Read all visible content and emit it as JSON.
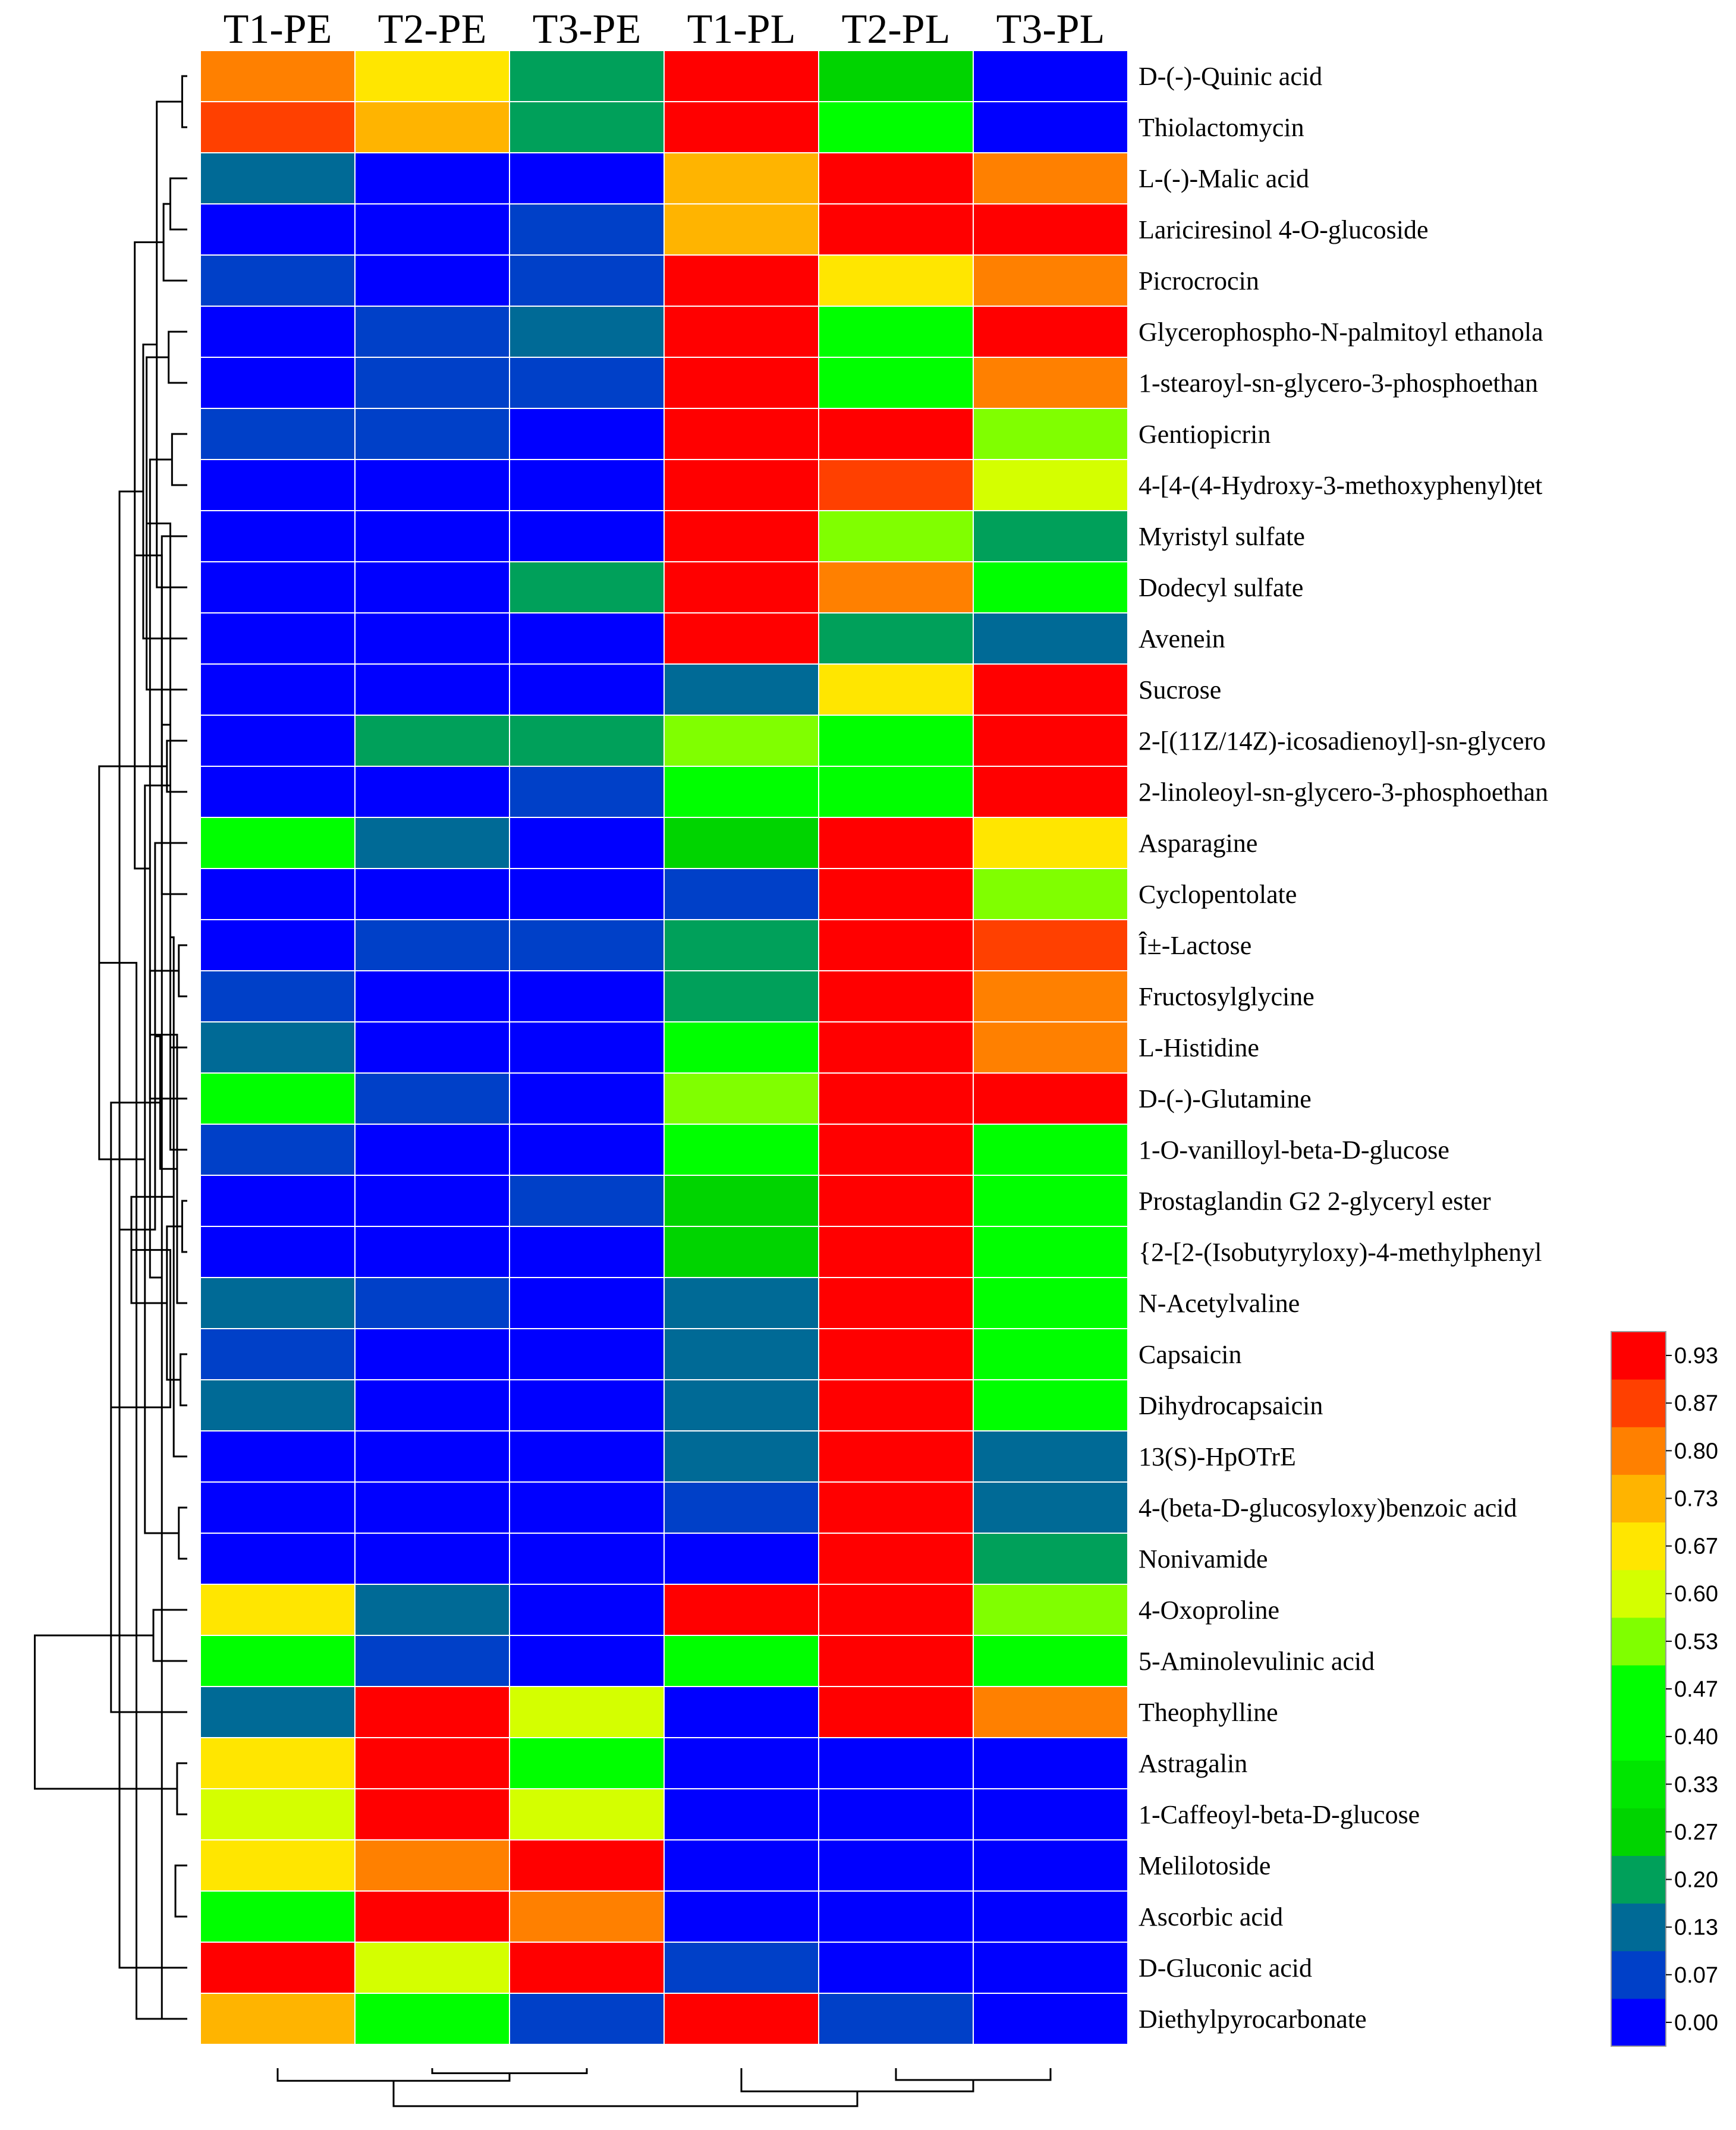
{
  "chart_data": {
    "type": "heatmap",
    "title": "",
    "columns": [
      "T1-PE",
      "T2-PE",
      "T3-PE",
      "T1-PL",
      "T2-PL",
      "T3-PL"
    ],
    "rows": [
      {
        "name": "D-(-)-Quinic acid",
        "values": [
          0.8,
          0.67,
          0.2,
          0.93,
          0.27,
          0.0
        ]
      },
      {
        "name": "Thiolactomycin",
        "values": [
          0.87,
          0.73,
          0.2,
          0.93,
          0.4,
          0.0
        ]
      },
      {
        "name": "L-(-)-Malic acid",
        "values": [
          0.13,
          0.0,
          0.0,
          0.73,
          0.93,
          0.8
        ]
      },
      {
        "name": "Lariciresinol 4-O-glucoside",
        "values": [
          0.0,
          0.0,
          0.07,
          0.73,
          0.93,
          0.93
        ]
      },
      {
        "name": "Picrocrocin",
        "values": [
          0.07,
          0.0,
          0.07,
          0.93,
          0.67,
          0.8
        ]
      },
      {
        "name": "Glycerophospho-N-palmitoyl ethanola",
        "values": [
          0.0,
          0.07,
          0.13,
          0.93,
          0.4,
          0.93
        ]
      },
      {
        "name": "1-stearoyl-sn-glycero-3-phosphoethan",
        "values": [
          0.0,
          0.07,
          0.07,
          0.93,
          0.4,
          0.8
        ]
      },
      {
        "name": "Gentiopicrin",
        "values": [
          0.07,
          0.07,
          0.0,
          0.93,
          0.93,
          0.53
        ]
      },
      {
        "name": "4-[4-(4-Hydroxy-3-methoxyphenyl)tet",
        "values": [
          0.0,
          0.0,
          0.0,
          0.93,
          0.87,
          0.6
        ]
      },
      {
        "name": "Myristyl sulfate",
        "values": [
          0.0,
          0.0,
          0.0,
          0.93,
          0.53,
          0.2
        ]
      },
      {
        "name": "Dodecyl sulfate",
        "values": [
          0.0,
          0.0,
          0.2,
          0.93,
          0.8,
          0.4
        ]
      },
      {
        "name": "Avenein",
        "values": [
          0.0,
          0.0,
          0.0,
          0.93,
          0.2,
          0.13
        ]
      },
      {
        "name": "Sucrose",
        "values": [
          0.0,
          0.0,
          0.0,
          0.13,
          0.67,
          0.93
        ]
      },
      {
        "name": "2-[(11Z/14Z)-icosadienoyl]-sn-glycero",
        "values": [
          0.0,
          0.2,
          0.2,
          0.53,
          0.4,
          0.93
        ]
      },
      {
        "name": "2-linoleoyl-sn-glycero-3-phosphoethan",
        "values": [
          0.0,
          0.0,
          0.07,
          0.4,
          0.4,
          0.93
        ]
      },
      {
        "name": "Asparagine",
        "values": [
          0.4,
          0.13,
          0.0,
          0.27,
          0.93,
          0.67
        ]
      },
      {
        "name": "Cyclopentolate",
        "values": [
          0.0,
          0.0,
          0.0,
          0.07,
          0.93,
          0.53
        ]
      },
      {
        "name": "Î±-Lactose",
        "values": [
          0.0,
          0.07,
          0.07,
          0.2,
          0.93,
          0.87
        ]
      },
      {
        "name": "Fructosylglycine",
        "values": [
          0.07,
          0.0,
          0.0,
          0.2,
          0.93,
          0.8
        ]
      },
      {
        "name": "L-Histidine",
        "values": [
          0.13,
          0.0,
          0.0,
          0.4,
          0.93,
          0.8
        ]
      },
      {
        "name": "D-(-)-Glutamine",
        "values": [
          0.4,
          0.07,
          0.0,
          0.53,
          0.93,
          0.93
        ]
      },
      {
        "name": "1-O-vanilloyl-beta-D-glucose",
        "values": [
          0.07,
          0.0,
          0.0,
          0.4,
          0.93,
          0.4
        ]
      },
      {
        "name": "Prostaglandin G2 2-glyceryl ester",
        "values": [
          0.0,
          0.0,
          0.07,
          0.27,
          0.93,
          0.4
        ]
      },
      {
        "name": "{2-[2-(Isobutyryloxy)-4-methylphenyl",
        "values": [
          0.0,
          0.0,
          0.0,
          0.27,
          0.93,
          0.4
        ]
      },
      {
        "name": "N-Acetylvaline",
        "values": [
          0.13,
          0.07,
          0.0,
          0.13,
          0.93,
          0.4
        ]
      },
      {
        "name": "Capsaicin",
        "values": [
          0.07,
          0.0,
          0.0,
          0.13,
          0.93,
          0.4
        ]
      },
      {
        "name": "Dihydrocapsaicin",
        "values": [
          0.13,
          0.0,
          0.0,
          0.13,
          0.93,
          0.4
        ]
      },
      {
        "name": "13(S)-HpOTrE",
        "values": [
          0.0,
          0.0,
          0.0,
          0.13,
          0.93,
          0.13
        ]
      },
      {
        "name": "4-(beta-D-glucosyloxy)benzoic acid",
        "values": [
          0.0,
          0.0,
          0.0,
          0.07,
          0.93,
          0.13
        ]
      },
      {
        "name": "Nonivamide",
        "values": [
          0.0,
          0.0,
          0.0,
          0.0,
          0.93,
          0.2
        ]
      },
      {
        "name": "4-Oxoproline",
        "values": [
          0.67,
          0.13,
          0.0,
          0.93,
          0.93,
          0.53
        ]
      },
      {
        "name": "5-Aminolevulinic acid",
        "values": [
          0.4,
          0.07,
          0.0,
          0.4,
          0.93,
          0.4
        ]
      },
      {
        "name": "Theophylline",
        "values": [
          0.13,
          0.93,
          0.6,
          0.0,
          0.93,
          0.8
        ]
      },
      {
        "name": "Astragalin",
        "values": [
          0.67,
          0.93,
          0.4,
          0.0,
          0.0,
          0.0
        ]
      },
      {
        "name": "1-Caffeoyl-beta-D-glucose",
        "values": [
          0.6,
          0.93,
          0.6,
          0.0,
          0.0,
          0.0
        ]
      },
      {
        "name": "Melilotoside",
        "values": [
          0.67,
          0.8,
          0.93,
          0.0,
          0.0,
          0.0
        ]
      },
      {
        "name": "Ascorbic acid",
        "values": [
          0.4,
          0.93,
          0.8,
          0.0,
          0.0,
          0.0
        ]
      },
      {
        "name": "D-Gluconic acid",
        "values": [
          0.93,
          0.6,
          0.93,
          0.07,
          0.0,
          0.0
        ]
      },
      {
        "name": "Diethylpyrocarbonate",
        "values": [
          0.73,
          0.4,
          0.07,
          0.93,
          0.07,
          0.0
        ]
      }
    ],
    "color_scale": {
      "ticks": [
        "0.00",
        "0.07",
        "0.13",
        "0.20",
        "0.27",
        "0.33",
        "0.40",
        "0.47",
        "0.53",
        "0.60",
        "0.67",
        "0.73",
        "0.80",
        "0.87",
        "0.93"
      ],
      "colors": [
        "#0000ff",
        "#0040c8",
        "#006a96",
        "#00a05a",
        "#00d400",
        "#00e600",
        "#00ff00",
        "#00ff00",
        "#80ff00",
        "#d4ff00",
        "#ffe600",
        "#ffb400",
        "#ff8000",
        "#ff4000",
        "#ff0000"
      ]
    },
    "row_dendrogram": [
      [
        0,
        1
      ],
      [
        2,
        3
      ],
      [
        7,
        8
      ],
      [
        38,
        9
      ],
      [
        39,
        10
      ],
      [
        4,
        40
      ],
      [
        5,
        6
      ],
      [
        42,
        41
      ],
      [
        43,
        11
      ],
      [
        13,
        14
      ],
      [
        12,
        45
      ],
      [
        44,
        46
      ],
      [
        37,
        47
      ],
      [
        17,
        18
      ],
      [
        49,
        19
      ],
      [
        16,
        50
      ],
      [
        15,
        51
      ],
      [
        52,
        20
      ],
      [
        22,
        23
      ],
      [
        21,
        54
      ],
      [
        25,
        26
      ],
      [
        24,
        56
      ],
      [
        28,
        29
      ],
      [
        27,
        58
      ],
      [
        57,
        59
      ],
      [
        55,
        60
      ],
      [
        53,
        61
      ],
      [
        30,
        31
      ],
      [
        62,
        63
      ],
      [
        64,
        32
      ],
      [
        48,
        65
      ],
      [
        33,
        34
      ],
      [
        35,
        36
      ],
      [
        67,
        68
      ],
      [
        69,
        38
      ],
      [
        66,
        70
      ]
    ],
    "row_dendrogram_heights": [
      0.03,
      0.1,
      0.09,
      0.15,
      0.18,
      0.14,
      0.11,
      0.22,
      0.26,
      0.12,
      0.24,
      0.31,
      0.4,
      0.05,
      0.1,
      0.15,
      0.19,
      0.22,
      0.03,
      0.1,
      0.04,
      0.06,
      0.05,
      0.08,
      0.12,
      0.16,
      0.25,
      0.2,
      0.33,
      0.45,
      0.52,
      0.06,
      0.07,
      0.1,
      0.3,
      0.9
    ],
    "column_dendrogram": [
      [
        1,
        2
      ],
      [
        0,
        6
      ],
      [
        4,
        5
      ],
      [
        3,
        8
      ],
      [
        7,
        9
      ]
    ],
    "column_dendrogram_heights": [
      0.12,
      0.3,
      0.28,
      0.55,
      0.9
    ]
  }
}
